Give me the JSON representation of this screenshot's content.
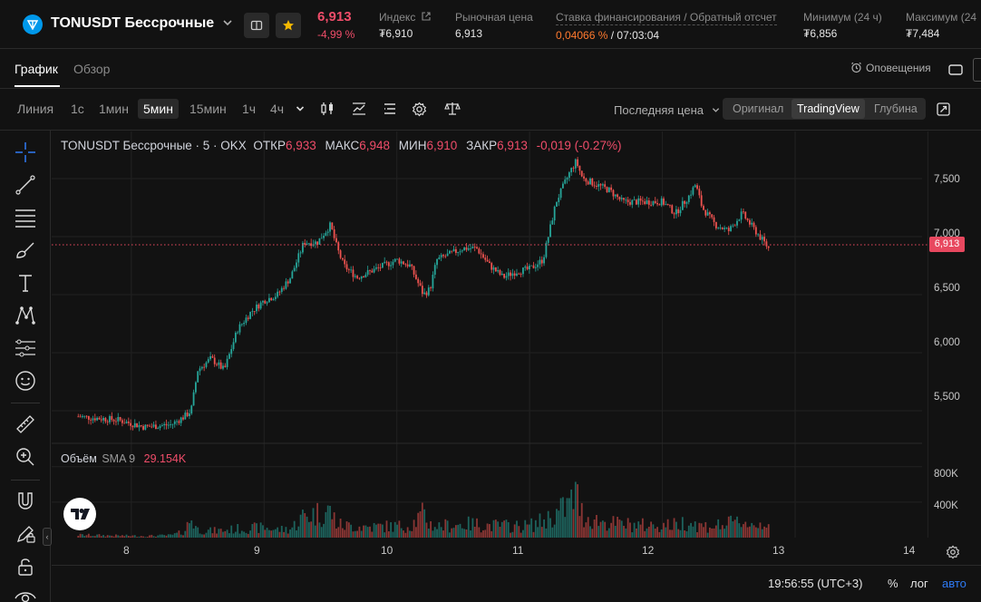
{
  "header": {
    "symbol": "TONUSDT Бессрочные",
    "last_price": "6,913",
    "change_pct": "-4,99 %",
    "index_label": "Индекс",
    "index_value": "₮6,910",
    "mark_label": "Рыночная цена",
    "mark_value": "6,913",
    "funding_label": "Ставка финансирования / Обратный отсчет",
    "funding_rate": "0,04066 %",
    "funding_countdown": " / 07:03:04",
    "low_label": "Минимум (24 ч)",
    "low_value": "₮6,856",
    "high_label": "Максимум (24",
    "high_value": "₮7,484"
  },
  "tabs": {
    "chart": "График",
    "overview": "Обзор",
    "alerts": "Оповещения"
  },
  "toolbar": {
    "timeframes": [
      "Линия",
      "1с",
      "1мин",
      "5мин",
      "15мин",
      "1ч",
      "4ч"
    ],
    "active_timeframe": "5мин",
    "price_type": "Последняя цена",
    "views": [
      "Оригинал",
      "TradingView",
      "Глубина"
    ],
    "active_view": "TradingView"
  },
  "legend": {
    "title": "TONUSDT Бессрочные · 5 · OKX",
    "open_label": "ОТКР",
    "open": "6,933",
    "high_label": "МАКС",
    "high": "6,948",
    "low_label": "МИН",
    "low": "6,910",
    "close_label": "ЗАКР",
    "close": "6,913",
    "change": "-0,019 (-0.27%)"
  },
  "volume_legend": {
    "label": "Объём",
    "sma": "SMA 9",
    "value": "29.154K"
  },
  "axis": {
    "price_ticks": [
      "7,500",
      "7,000",
      "6,500",
      "6,000",
      "5,500"
    ],
    "volume_ticks": [
      "800K",
      "400K"
    ],
    "time_ticks": [
      "8",
      "9",
      "10",
      "11",
      "12",
      "13",
      "14"
    ],
    "current_price_tag": "6,913"
  },
  "footer": {
    "clock": "19:56:55 (UTC+3)",
    "pct": "%",
    "log": "лог",
    "auto": "авто"
  },
  "colors": {
    "up": "#26a69a",
    "down": "#ef5350",
    "accent": "#2f7bf5",
    "price_tag": "#e8485f"
  },
  "chart_data": {
    "type": "line",
    "x": [
      7.6,
      7.9,
      8.1,
      8.3,
      8.4,
      8.45,
      8.5,
      8.6,
      8.7,
      8.8,
      8.9,
      9.0,
      9.1,
      9.2,
      9.3,
      9.4,
      9.5,
      9.55,
      9.6,
      9.7,
      9.8,
      9.9,
      10.0,
      10.1,
      10.2,
      10.25,
      10.3,
      10.5,
      10.6,
      10.7,
      10.8,
      10.9,
      11.0,
      11.1,
      11.2,
      11.3,
      11.35,
      11.4,
      11.5,
      11.6,
      11.7,
      11.8,
      11.9,
      12.0,
      12.1,
      12.2,
      12.25,
      12.3,
      12.4,
      12.5,
      12.6,
      12.7,
      12.8
    ],
    "series": [
      {
        "values": [
          5.45,
          5.42,
          5.36,
          5.38,
          5.45,
          5.5,
          5.85,
          5.95,
          5.85,
          6.2,
          6.35,
          6.45,
          6.5,
          6.65,
          6.95,
          6.95,
          7.1,
          6.9,
          6.75,
          6.65,
          6.7,
          6.75,
          6.8,
          6.75,
          6.5,
          6.55,
          6.8,
          6.9,
          6.9,
          6.75,
          6.65,
          6.7,
          6.72,
          6.8,
          7.3,
          7.55,
          7.65,
          7.5,
          7.45,
          7.4,
          7.3,
          7.3,
          7.3,
          7.3,
          7.2,
          7.35,
          7.45,
          7.25,
          7.1,
          7.05,
          7.2,
          7.05,
          6.9
        ]
      }
    ],
    "volume_values": [
      40,
      30,
      25,
      35,
      90,
      300,
      120,
      100,
      110,
      130,
      140,
      150,
      120,
      130,
      330,
      360,
      400,
      200,
      180,
      170,
      160,
      170,
      170,
      180,
      350,
      200,
      170,
      200,
      200,
      180,
      180,
      170,
      180,
      250,
      350,
      500,
      650,
      330,
      260,
      220,
      200,
      190,
      180,
      190,
      190,
      250,
      200,
      170,
      180,
      200,
      250,
      180,
      250
    ],
    "ylim": [
      5.25,
      7.75
    ],
    "volume_ylim": [
      0,
      900
    ],
    "xlim": [
      7.4,
      14.4
    ]
  }
}
